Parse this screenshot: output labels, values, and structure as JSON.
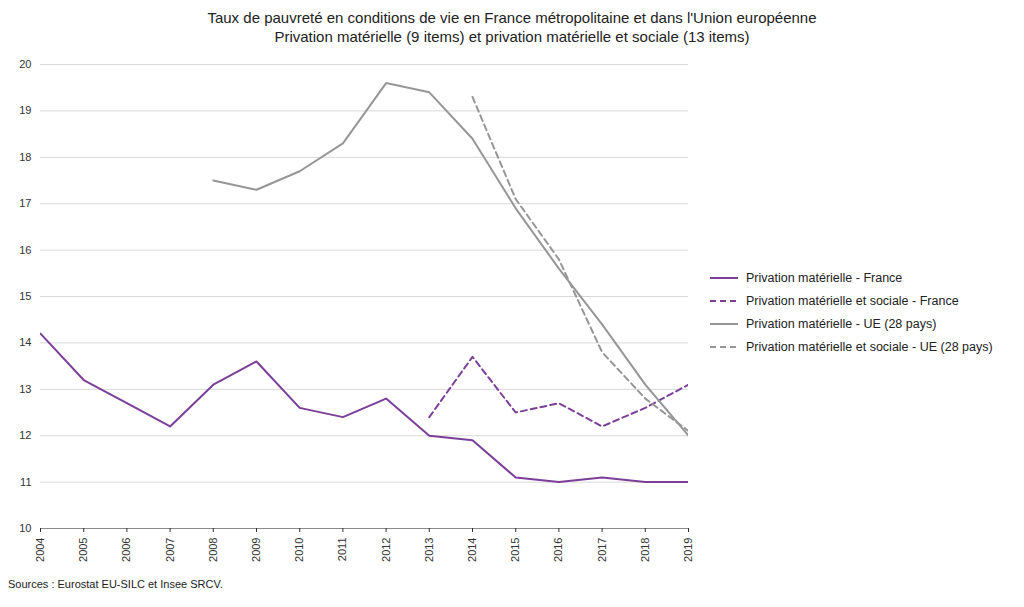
{
  "chart_data": {
    "type": "line",
    "title": "Taux de pauvreté en conditions de vie en France métropolitaine et dans l'Union européenne",
    "subtitle": "Privation matérielle (9 items) et privation matérielle et sociale (13 items)",
    "caption": "Sources : Eurostat EU-SILC et Insee SRCV.",
    "x": [
      2004,
      2005,
      2006,
      2007,
      2008,
      2009,
      2010,
      2011,
      2012,
      2013,
      2014,
      2015,
      2016,
      2017,
      2018,
      2019
    ],
    "series": [
      {
        "name": "Privation matérielle - France",
        "color": "#7b3f98",
        "line_style": "solid",
        "values": [
          14.2,
          13.2,
          12.7,
          12.2,
          13.1,
          13.6,
          12.6,
          12.4,
          12.8,
          12.0,
          11.9,
          11.1,
          11.0,
          11.1,
          11.0,
          11.0
        ]
      },
      {
        "name": "Privation matérielle et sociale - France",
        "color": "#7b3f98",
        "line_style": "dashed",
        "values": [
          null,
          null,
          null,
          null,
          null,
          null,
          null,
          null,
          null,
          12.4,
          13.7,
          12.5,
          12.7,
          12.2,
          12.6,
          13.1
        ]
      },
      {
        "name": "Privation matérielle - UE (28 pays)",
        "color": "#969696",
        "line_style": "solid",
        "values": [
          null,
          null,
          null,
          null,
          17.5,
          17.3,
          17.7,
          18.3,
          19.6,
          19.4,
          18.4,
          16.9,
          15.6,
          14.4,
          13.1,
          12.0
        ]
      },
      {
        "name": "Privation matérielle et sociale - UE (28 pays)",
        "color": "#969696",
        "line_style": "dashed",
        "values": [
          null,
          null,
          null,
          null,
          null,
          null,
          null,
          null,
          null,
          null,
          19.3,
          17.1,
          15.8,
          13.8,
          12.8,
          12.1
        ]
      }
    ],
    "xlim": [
      2004,
      2019
    ],
    "xticks": [
      2004,
      2005,
      2006,
      2007,
      2008,
      2009,
      2010,
      2011,
      2012,
      2013,
      2014,
      2015,
      2016,
      2017,
      2018,
      2019
    ],
    "ylim": [
      10,
      20
    ],
    "yticks": [
      10,
      11,
      12,
      13,
      14,
      15,
      16,
      17,
      18,
      19,
      20
    ],
    "grid": true,
    "legend": "right"
  }
}
